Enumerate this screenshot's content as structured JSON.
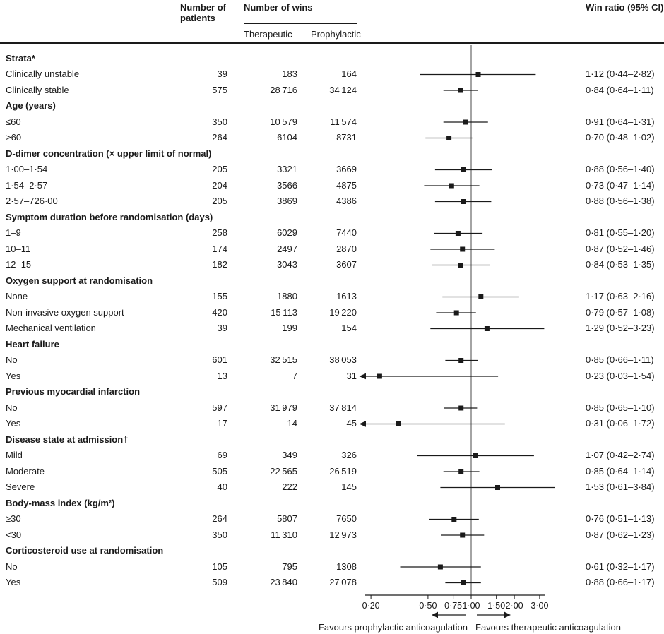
{
  "header": {
    "col_patients_line1": "Number of",
    "col_patients_line2": "patients",
    "col_wins": "Number of wins",
    "col_therapeutic": "Therapeutic",
    "col_prophylactic": "Prophylactic",
    "col_win_ratio": "Win ratio (95% CI)"
  },
  "footer": {
    "favours_left": "Favours prophylactic anticoagulation",
    "favours_right": "Favours therapeutic anticoagulation"
  },
  "chart_data": {
    "type": "forest",
    "x_scale": "log",
    "x_ticks": [
      "0·20",
      "0·50",
      "0·75",
      "1·00",
      "1·50",
      "2·00",
      "3·00"
    ],
    "x_tick_values": [
      0.2,
      0.5,
      0.75,
      1,
      1.5,
      2,
      3
    ],
    "reference_value": 1,
    "marker_color": "#1a1a1a",
    "groups": [
      {
        "label": "Strata*",
        "rows": [
          {
            "label": "Clinically unstable",
            "patients": "39",
            "therapeutic": "183",
            "prophylactic": "164",
            "win_ratio": 1.12,
            "ci_low": 0.44,
            "ci_high": 2.82,
            "display": "1·12 (0·44–2·82)"
          },
          {
            "label": "Clinically stable",
            "patients": "575",
            "therapeutic": "28 716",
            "prophylactic": "34 124",
            "win_ratio": 0.84,
            "ci_low": 0.64,
            "ci_high": 1.11,
            "display": "0·84 (0·64–1·11)"
          }
        ]
      },
      {
        "label": "Age (years)",
        "rows": [
          {
            "label": "≤60",
            "patients": "350",
            "therapeutic": "10 579",
            "prophylactic": "11 574",
            "win_ratio": 0.91,
            "ci_low": 0.64,
            "ci_high": 1.31,
            "display": "0·91 (0·64–1·31)"
          },
          {
            "label": ">60",
            "patients": "264",
            "therapeutic": "6104",
            "prophylactic": "8731",
            "win_ratio": 0.7,
            "ci_low": 0.48,
            "ci_high": 1.02,
            "display": "0·70 (0·48–1·02)"
          }
        ]
      },
      {
        "label": "D-dimer concentration (× upper limit of normal)",
        "rows": [
          {
            "label": "1·00–1·54",
            "patients": "205",
            "therapeutic": "3321",
            "prophylactic": "3669",
            "win_ratio": 0.88,
            "ci_low": 0.56,
            "ci_high": 1.4,
            "display": "0·88 (0·56–1·40)"
          },
          {
            "label": "1·54–2·57",
            "patients": "204",
            "therapeutic": "3566",
            "prophylactic": "4875",
            "win_ratio": 0.73,
            "ci_low": 0.47,
            "ci_high": 1.14,
            "display": "0·73 (0·47–1·14)"
          },
          {
            "label": "2·57–726·00",
            "patients": "205",
            "therapeutic": "3869",
            "prophylactic": "4386",
            "win_ratio": 0.88,
            "ci_low": 0.56,
            "ci_high": 1.38,
            "display": "0·88 (0·56–1·38)"
          }
        ]
      },
      {
        "label": "Symptom duration before randomisation (days)",
        "rows": [
          {
            "label": "1–9",
            "patients": "258",
            "therapeutic": "6029",
            "prophylactic": "7440",
            "win_ratio": 0.81,
            "ci_low": 0.55,
            "ci_high": 1.2,
            "display": "0·81 (0·55–1·20)"
          },
          {
            "label": "10–11",
            "patients": "174",
            "therapeutic": "2497",
            "prophylactic": "2870",
            "win_ratio": 0.87,
            "ci_low": 0.52,
            "ci_high": 1.46,
            "display": "0·87 (0·52–1·46)"
          },
          {
            "label": "12–15",
            "patients": "182",
            "therapeutic": "3043",
            "prophylactic": "3607",
            "win_ratio": 0.84,
            "ci_low": 0.53,
            "ci_high": 1.35,
            "display": "0·84 (0·53–1·35)"
          }
        ]
      },
      {
        "label": "Oxygen support at randomisation",
        "rows": [
          {
            "label": "None",
            "patients": "155",
            "therapeutic": "1880",
            "prophylactic": "1613",
            "win_ratio": 1.17,
            "ci_low": 0.63,
            "ci_high": 2.16,
            "display": "1·17 (0·63–2·16)"
          },
          {
            "label": "Non-invasive oxygen support",
            "patients": "420",
            "therapeutic": "15 113",
            "prophylactic": "19 220",
            "win_ratio": 0.79,
            "ci_low": 0.57,
            "ci_high": 1.08,
            "display": "0·79 (0·57–1·08)"
          },
          {
            "label": "Mechanical ventilation",
            "patients": "39",
            "therapeutic": "199",
            "prophylactic": "154",
            "win_ratio": 1.29,
            "ci_low": 0.52,
            "ci_high": 3.23,
            "display": "1·29 (0·52–3·23)"
          }
        ]
      },
      {
        "label": "Heart failure",
        "rows": [
          {
            "label": "No",
            "patients": "601",
            "therapeutic": "32 515",
            "prophylactic": "38 053",
            "win_ratio": 0.85,
            "ci_low": 0.66,
            "ci_high": 1.11,
            "display": "0·85 (0·66–1·11)"
          },
          {
            "label": "Yes",
            "patients": "13",
            "therapeutic": "7",
            "prophylactic": "31",
            "win_ratio": 0.23,
            "ci_low": 0.03,
            "ci_high": 1.54,
            "display": "0·23 (0·03–1·54)"
          }
        ]
      },
      {
        "label": "Previous myocardial infarction",
        "rows": [
          {
            "label": "No",
            "patients": "597",
            "therapeutic": "31 979",
            "prophylactic": "37 814",
            "win_ratio": 0.85,
            "ci_low": 0.65,
            "ci_high": 1.1,
            "display": "0·85 (0·65–1·10)"
          },
          {
            "label": "Yes",
            "patients": "17",
            "therapeutic": "14",
            "prophylactic": "45",
            "win_ratio": 0.31,
            "ci_low": 0.06,
            "ci_high": 1.72,
            "display": "0·31 (0·06–1·72)"
          }
        ]
      },
      {
        "label": "Disease state at admission†",
        "rows": [
          {
            "label": "Mild",
            "patients": "69",
            "therapeutic": "349",
            "prophylactic": "326",
            "win_ratio": 1.07,
            "ci_low": 0.42,
            "ci_high": 2.74,
            "display": "1·07 (0·42–2·74)"
          },
          {
            "label": "Moderate",
            "patients": "505",
            "therapeutic": "22 565",
            "prophylactic": "26 519",
            "win_ratio": 0.85,
            "ci_low": 0.64,
            "ci_high": 1.14,
            "display": "0·85 (0·64–1·14)"
          },
          {
            "label": "Severe",
            "patients": "40",
            "therapeutic": "222",
            "prophylactic": "145",
            "win_ratio": 1.53,
            "ci_low": 0.61,
            "ci_high": 3.84,
            "display": "1·53 (0·61–3·84)"
          }
        ]
      },
      {
        "label": "Body-mass index (kg/m²)",
        "rows": [
          {
            "label": "≥30",
            "patients": "264",
            "therapeutic": "5807",
            "prophylactic": "7650",
            "win_ratio": 0.76,
            "ci_low": 0.51,
            "ci_high": 1.13,
            "display": "0·76 (0·51–1·13)"
          },
          {
            "label": "<30",
            "patients": "350",
            "therapeutic": "11 310",
            "prophylactic": "12 973",
            "win_ratio": 0.87,
            "ci_low": 0.62,
            "ci_high": 1.23,
            "display": "0·87 (0·62–1·23)"
          }
        ]
      },
      {
        "label": "Corticosteroid use at randomisation",
        "rows": [
          {
            "label": "No",
            "patients": "105",
            "therapeutic": "795",
            "prophylactic": "1308",
            "win_ratio": 0.61,
            "ci_low": 0.32,
            "ci_high": 1.17,
            "display": "0·61 (0·32–1·17)"
          },
          {
            "label": "Yes",
            "patients": "509",
            "therapeutic": "23 840",
            "prophylactic": "27 078",
            "win_ratio": 0.88,
            "ci_low": 0.66,
            "ci_high": 1.17,
            "display": "0·88 (0·66–1·17)"
          }
        ]
      }
    ]
  }
}
